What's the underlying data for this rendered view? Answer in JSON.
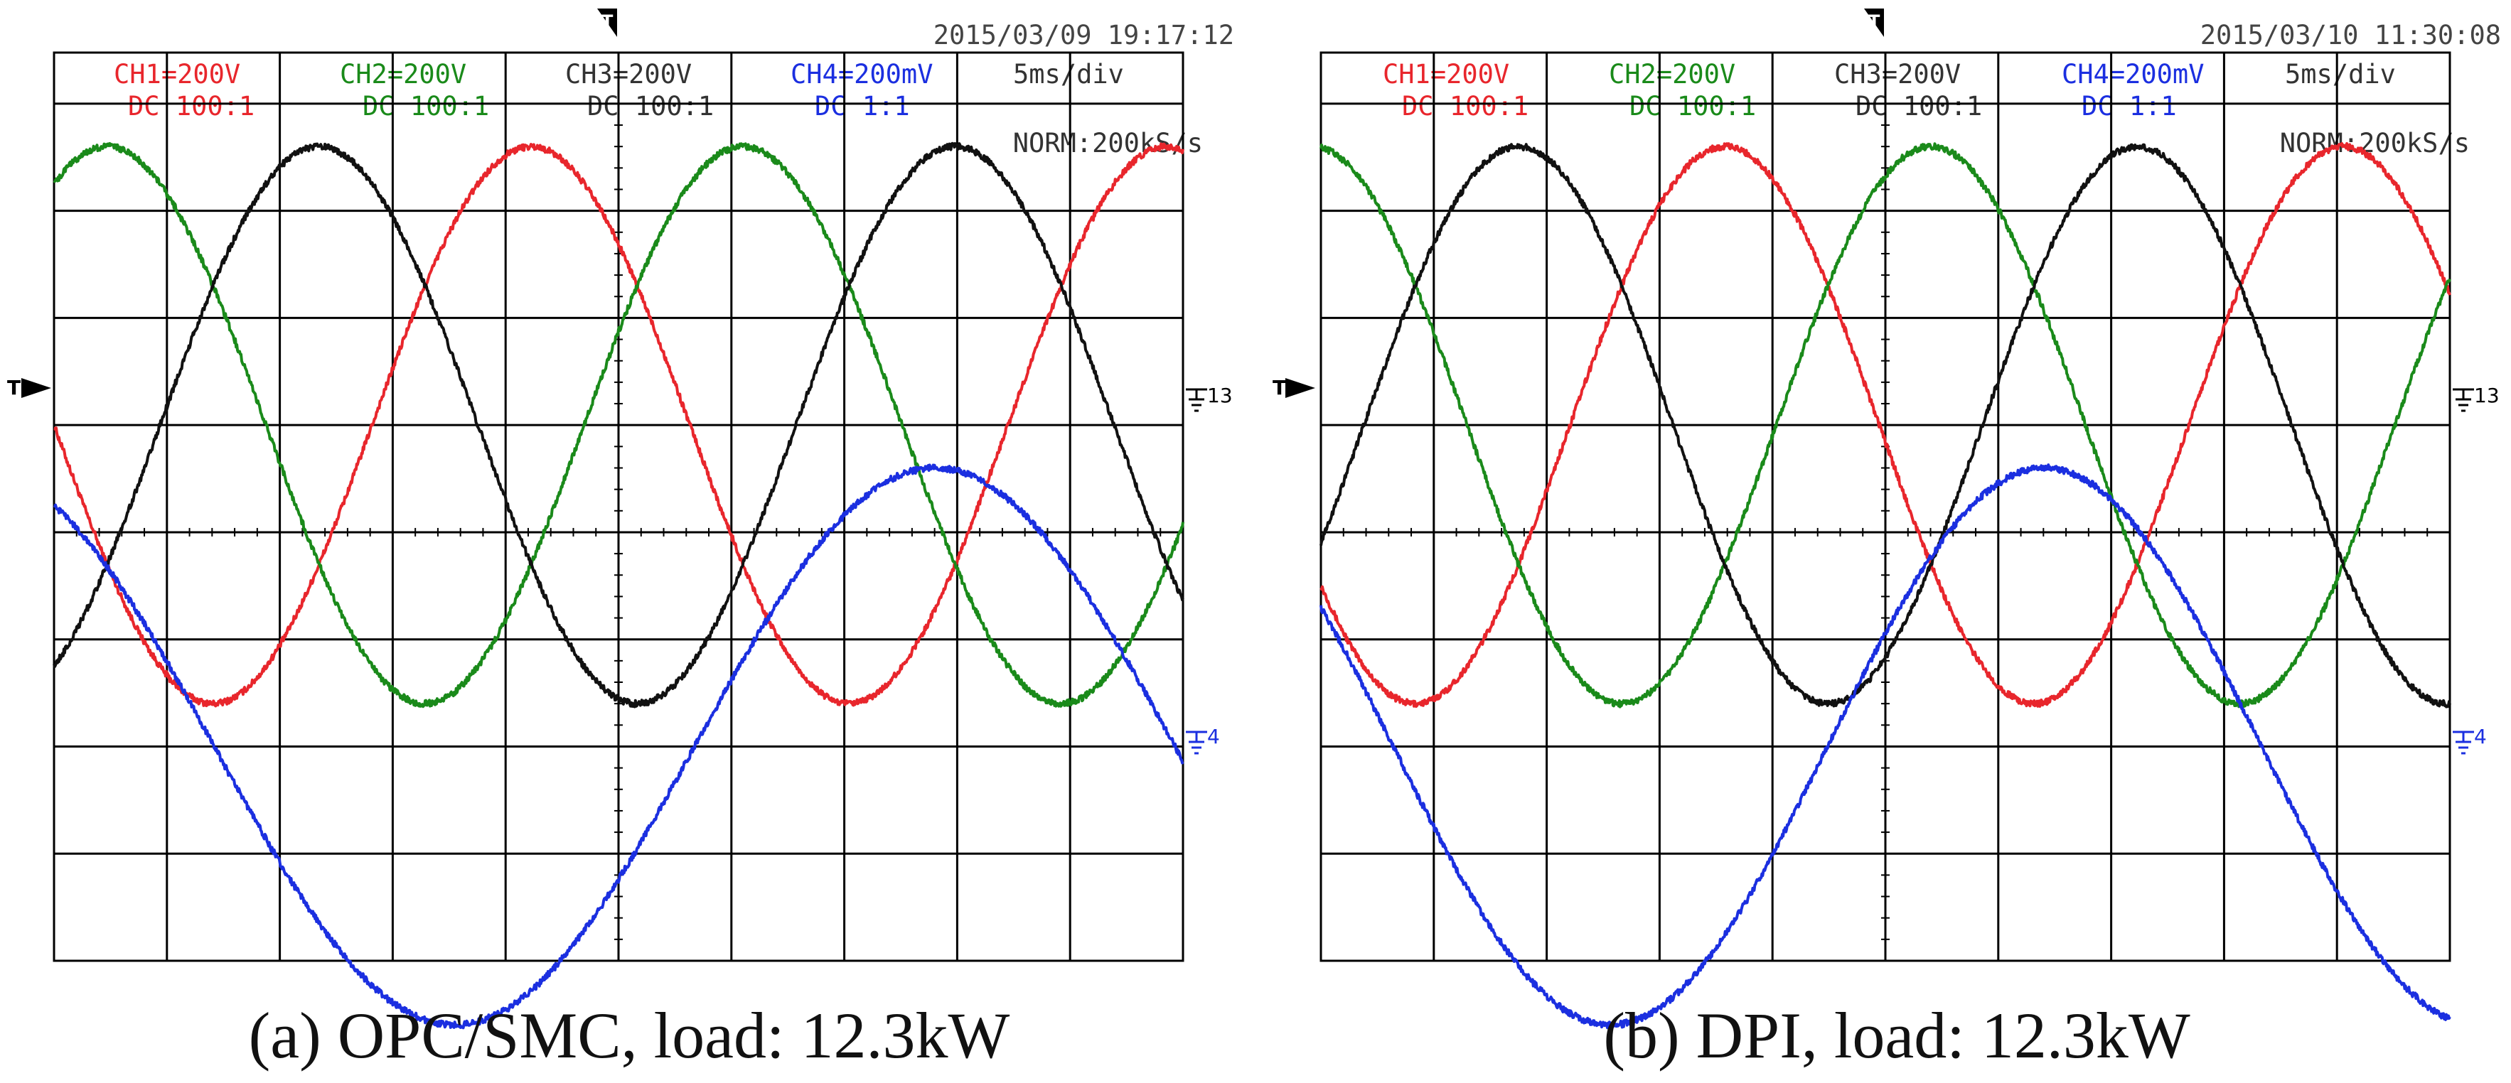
{
  "colors": {
    "ch1": "#e8262c",
    "ch2": "#1a8a1a",
    "ch3": "#111111",
    "ch4": "#1b2fe0"
  },
  "icons": [
    "trigger-marker-icon",
    "ground-marker-icon"
  ],
  "chart_data": [
    {
      "type": "line",
      "panel": "a",
      "caption": "(a) OPC/SMC, load: 12.3kW",
      "timestamp": "2015/03/09 19:17:12",
      "timebase": "5ms/div",
      "sample_rate": "NORM:200kS/s",
      "channels": [
        {
          "name": "CH1=200V",
          "coupling": "DC 100:1"
        },
        {
          "name": "CH2=200V",
          "coupling": "DC 100:1"
        },
        {
          "name": "CH3=200V",
          "coupling": "DC 100:1"
        },
        {
          "name": "CH4=200mV",
          "coupling": "DC 1:1"
        }
      ],
      "ground_labels": {
        "ch13": "13",
        "ch4": "4"
      },
      "x_range_ms": [
        0,
        50
      ],
      "y_range_div": [
        -4,
        4
      ],
      "grid_divisions": [
        10,
        8
      ],
      "series": [
        {
          "name": "CH1",
          "offset_div": 1,
          "amplitude_div": 2.6,
          "freq_hz": 35.5,
          "phase_deg": 180
        },
        {
          "name": "CH2",
          "offset_div": 1,
          "amplitude_div": 2.6,
          "freq_hz": 35.5,
          "phase_deg": 60
        },
        {
          "name": "CH3",
          "offset_div": 1,
          "amplitude_div": 2.6,
          "freq_hz": 35.5,
          "phase_deg": -60
        },
        {
          "name": "CH4",
          "offset_div": -2,
          "amplitude_div": 2.6,
          "freq_hz": 23.5,
          "phase_deg": 120
        }
      ]
    },
    {
      "type": "line",
      "panel": "b",
      "caption": "(b) DPI, load: 12.3kW",
      "timestamp": "2015/03/10 11:30:08",
      "timebase": "5ms/div",
      "sample_rate": "NORM:200kS/s",
      "channels": [
        {
          "name": "CH1=200V",
          "coupling": "DC 100:1"
        },
        {
          "name": "CH2=200V",
          "coupling": "DC 100:1"
        },
        {
          "name": "CH3=200V",
          "coupling": "DC 100:1"
        },
        {
          "name": "CH4=200mV",
          "coupling": "DC 1:1"
        }
      ],
      "ground_labels": {
        "ch13": "13",
        "ch4": "4"
      },
      "x_range_ms": [
        0,
        50
      ],
      "y_range_div": [
        -4,
        4
      ],
      "grid_divisions": [
        10,
        8
      ],
      "series": [
        {
          "name": "CH1",
          "offset_div": 1,
          "amplitude_div": 2.6,
          "freq_hz": 36.5,
          "phase_deg": -145
        },
        {
          "name": "CH2",
          "offset_div": 1,
          "amplitude_div": 2.6,
          "freq_hz": 36.5,
          "phase_deg": 95
        },
        {
          "name": "CH3",
          "offset_div": 1,
          "amplitude_div": 2.6,
          "freq_hz": 36.5,
          "phase_deg": -25
        },
        {
          "name": "CH4",
          "offset_div": -2,
          "amplitude_div": 2.6,
          "freq_hz": 26.0,
          "phase_deg": -210
        }
      ]
    }
  ]
}
